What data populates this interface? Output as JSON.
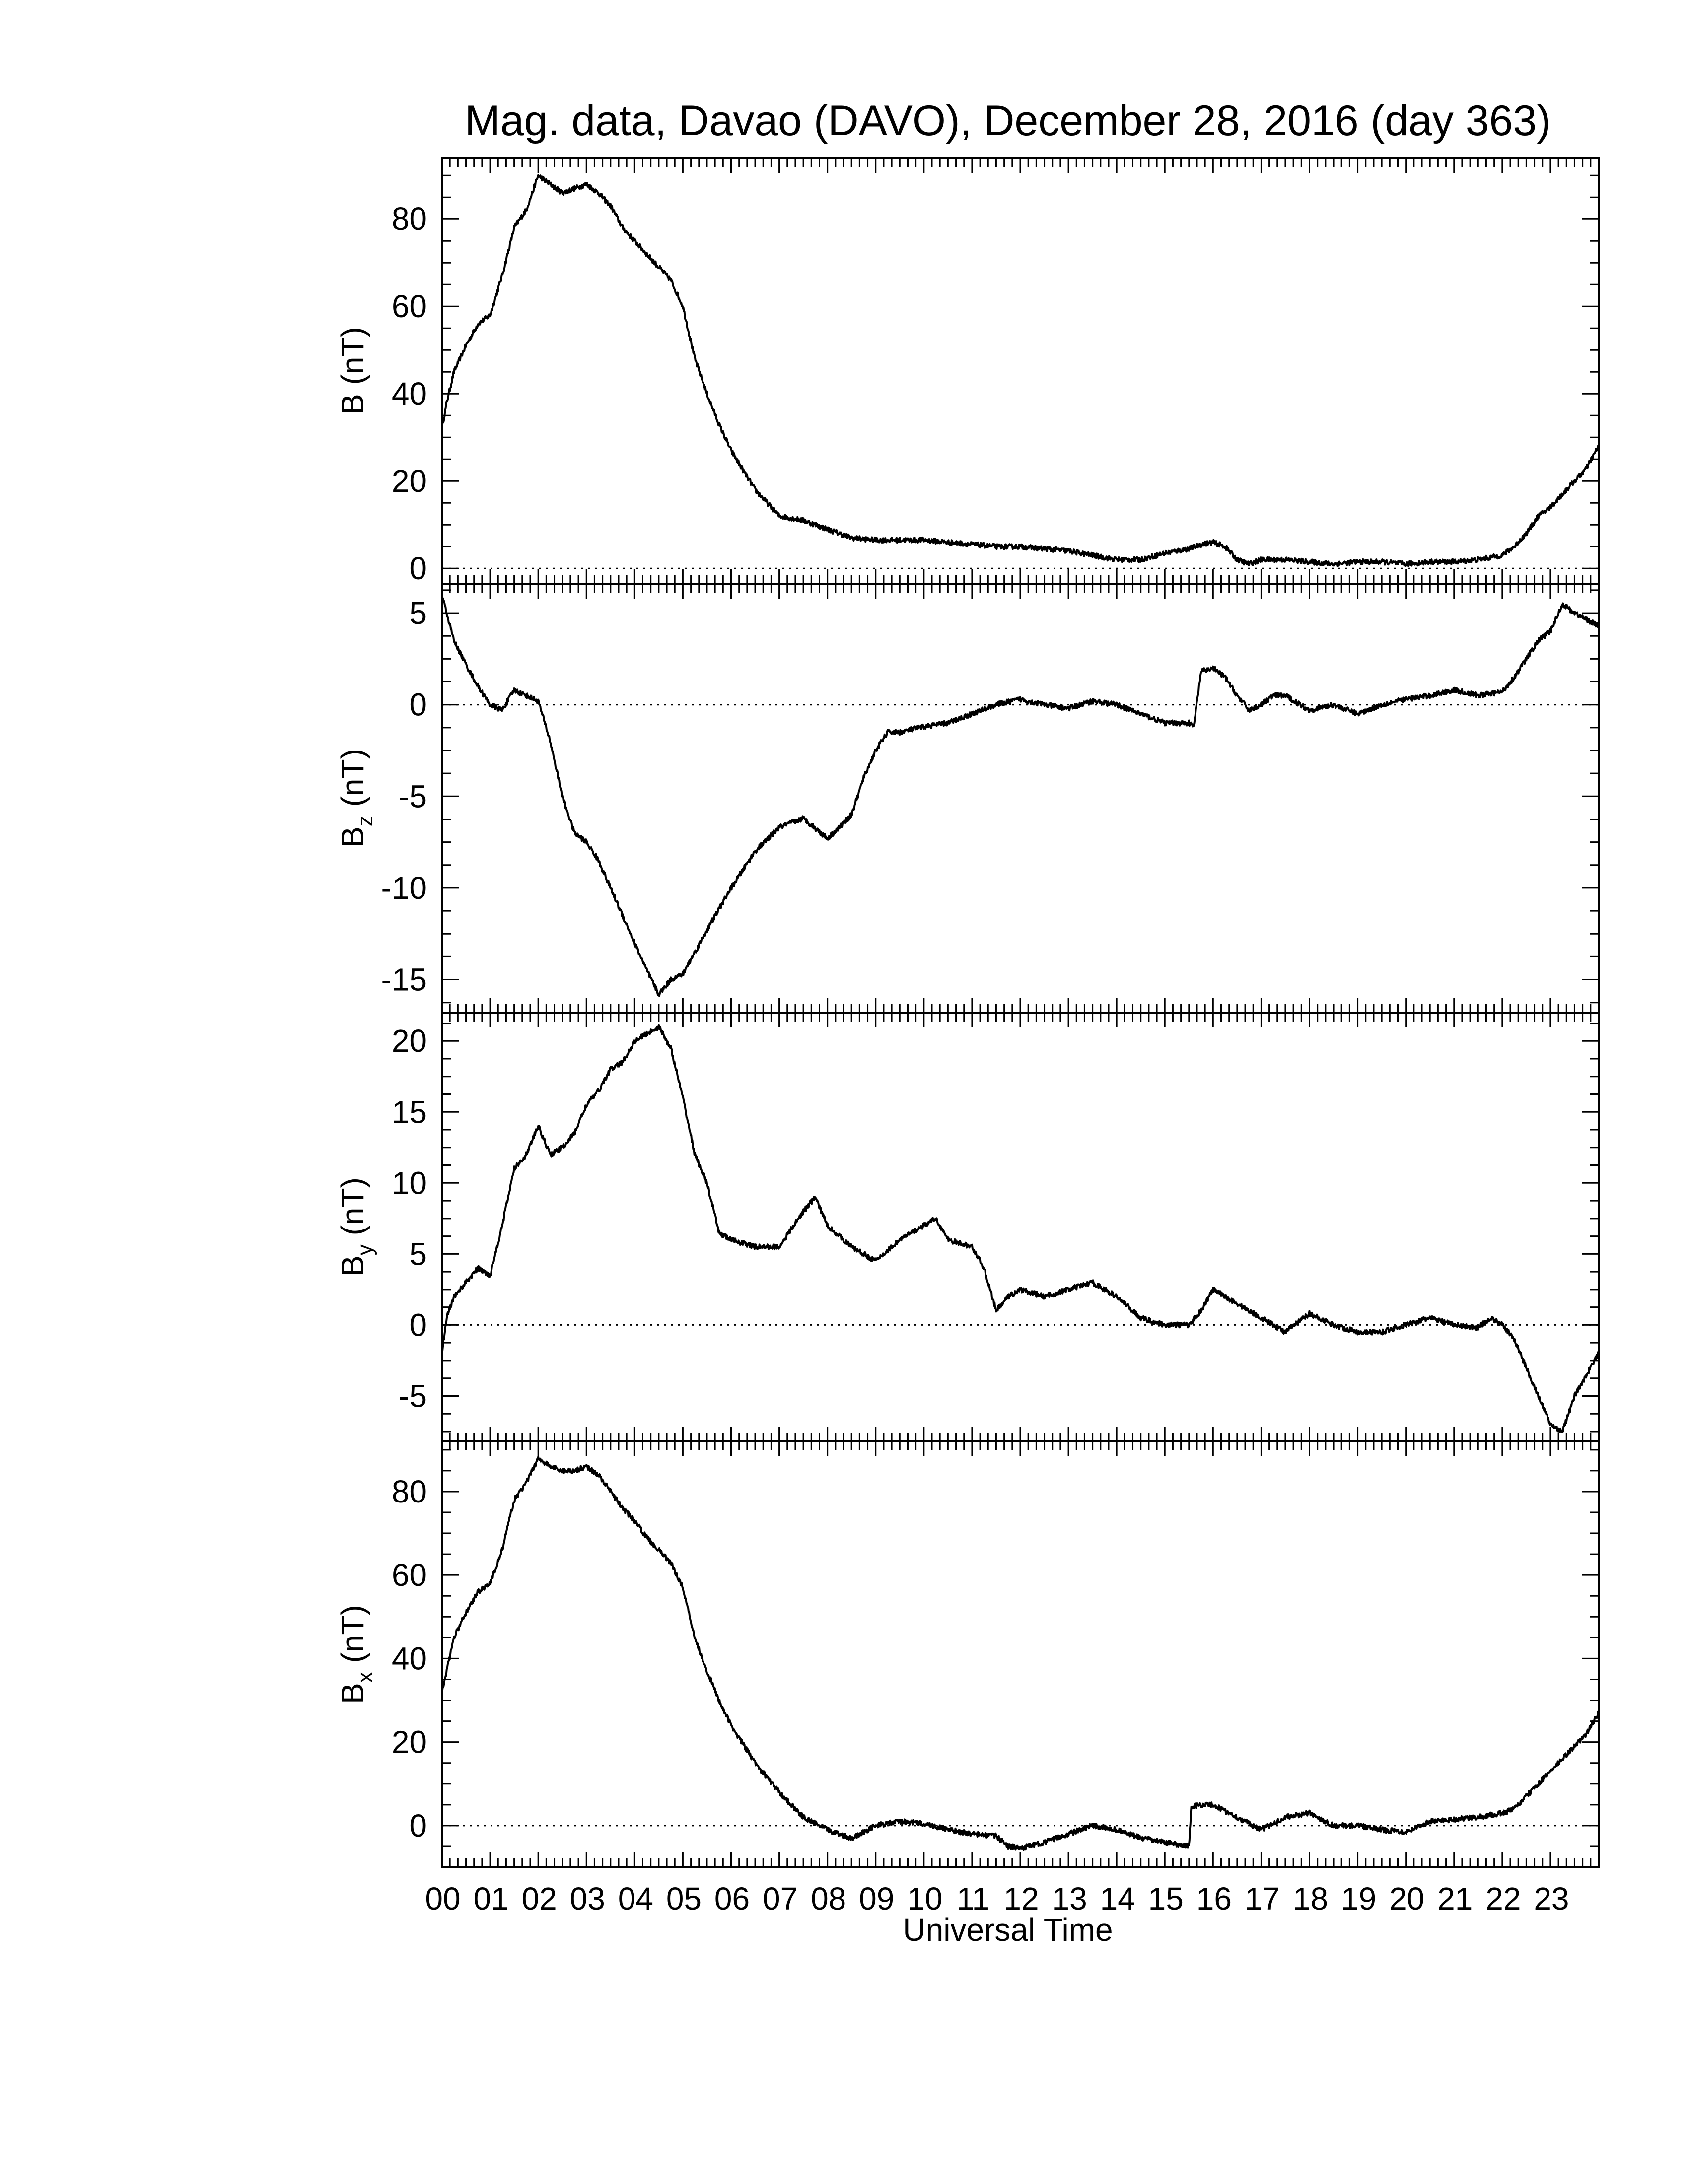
{
  "chart_data": {
    "type": "line",
    "title": "Mag. data, Davao (DAVO), December 28, 2016 (day 363)",
    "xlabel": "Universal Time",
    "x_tick_labels": [
      "00",
      "01",
      "02",
      "03",
      "04",
      "05",
      "06",
      "07",
      "08",
      "09",
      "10",
      "11",
      "12",
      "13",
      "14",
      "15",
      "16",
      "17",
      "18",
      "19",
      "20",
      "21",
      "22",
      "23"
    ],
    "xlim": [
      0,
      24
    ],
    "x_unit": "hours UT",
    "panels": [
      {
        "ylabel_main": "B",
        "ylabel_sub": "",
        "ylabel_unit": "(nT)",
        "ylim": [
          -3.5,
          94
        ],
        "yticks": [
          0,
          20,
          40,
          60,
          80
        ],
        "ytick_labels": [
          "0",
          "20",
          "40",
          "60",
          "80"
        ],
        "zero_line": true,
        "series": [
          {
            "x": [
              0,
              0.1,
              0.25,
              0.5,
              0.75,
              1.0,
              1.25,
              1.5,
              1.75,
              2.0,
              2.25,
              2.5,
              2.75,
              3.0,
              3.25,
              3.5,
              3.75,
              4.0,
              4.25,
              4.5,
              4.75,
              5.0,
              5.25,
              5.5,
              5.75,
              6.0,
              6.5,
              7.0,
              7.5,
              8.0,
              8.5,
              9.0,
              9.5,
              10.0,
              10.5,
              11.0,
              11.5,
              12.0,
              12.5,
              13.0,
              13.5,
              14.0,
              14.5,
              15.0,
              15.5,
              15.75,
              16.0,
              16.25,
              16.5,
              16.75,
              17.0,
              17.5,
              18.0,
              18.5,
              19.0,
              19.5,
              20.0,
              20.5,
              21.0,
              21.5,
              22.0,
              22.25,
              22.5,
              22.75,
              23.0,
              23.25,
              23.5,
              23.75,
              24.0
            ],
            "y": [
              32,
              38,
              45,
              51,
              56,
              58,
              67,
              78,
              82,
              90,
              88,
              86,
              87,
              88,
              86,
              83,
              78,
              75,
              72,
              69,
              66,
              60,
              48,
              40,
              33,
              27,
              18,
              12,
              11,
              9,
              7,
              6.5,
              6.5,
              6.5,
              6,
              5.5,
              5,
              5,
              4.5,
              4,
              3,
              2,
              2,
              3.5,
              4.5,
              5.5,
              6,
              5,
              2,
              1,
              2,
              2,
              1.5,
              1,
              1.5,
              1.5,
              1,
              1.5,
              1.5,
              2,
              3,
              5,
              8,
              12,
              14,
              17,
              20,
              23,
              28
            ]
          }
        ]
      },
      {
        "ylabel_main": "B",
        "ylabel_sub": "z",
        "ylabel_unit": "(nT)",
        "ylim": [
          -16.8,
          6.6
        ],
        "yticks": [
          -15,
          -10,
          -5,
          0,
          5
        ],
        "ytick_labels": [
          "-15",
          "-10",
          "-5",
          "0",
          "5"
        ],
        "zero_line": true,
        "series": [
          {
            "x": [
              0,
              0.25,
              0.5,
              0.75,
              1.0,
              1.25,
              1.5,
              1.75,
              2.0,
              2.25,
              2.5,
              2.75,
              3.0,
              3.25,
              3.5,
              3.75,
              4.0,
              4.25,
              4.5,
              4.75,
              5.0,
              5.25,
              5.5,
              6.0,
              6.5,
              7.0,
              7.5,
              8.0,
              8.25,
              8.5,
              8.75,
              9.0,
              9.25,
              9.5,
              10.0,
              10.5,
              11.0,
              11.5,
              12.0,
              12.5,
              13.0,
              13.5,
              14.0,
              14.5,
              15.0,
              15.5,
              15.6,
              15.75,
              16.0,
              16.25,
              16.5,
              16.75,
              17.0,
              17.25,
              17.5,
              18.0,
              18.5,
              19.0,
              19.5,
              20.0,
              20.5,
              21.0,
              21.5,
              22.0,
              22.25,
              22.5,
              22.75,
              23.0,
              23.25,
              23.5,
              24.0
            ],
            "y": [
              6,
              3.5,
              2.2,
              1,
              0,
              -0.3,
              0.8,
              0.5,
              0.2,
              -2,
              -5,
              -7,
              -7.5,
              -8.5,
              -10,
              -11.5,
              -13,
              -14.5,
              -15.8,
              -15,
              -14.7,
              -13.5,
              -12.3,
              -10,
              -8,
              -6.7,
              -6.2,
              -7.3,
              -6.7,
              -6,
              -4,
              -2.5,
              -1.5,
              -1.5,
              -1.2,
              -1,
              -0.5,
              0,
              0.3,
              0,
              -0.2,
              0.2,
              0,
              -0.5,
              -1,
              -1,
              -1.2,
              1.8,
              2,
              1.5,
              0.5,
              -0.3,
              0,
              0.5,
              0.5,
              -0.3,
              0,
              -0.5,
              0,
              0.3,
              0.5,
              0.8,
              0.5,
              0.7,
              1.5,
              2.5,
              3.5,
              4,
              5.5,
              5,
              4.3
            ]
          }
        ]
      },
      {
        "ylabel_main": "B",
        "ylabel_sub": "y",
        "ylabel_unit": "(nT)",
        "ylim": [
          -8.2,
          22
        ],
        "yticks": [
          -5,
          0,
          5,
          10,
          15,
          20
        ],
        "ytick_labels": [
          "-5",
          "0",
          "5",
          "10",
          "15",
          "20"
        ],
        "zero_line": true,
        "series": [
          {
            "x": [
              0,
              0.1,
              0.25,
              0.5,
              0.75,
              1.0,
              1.25,
              1.5,
              1.75,
              2.0,
              2.25,
              2.5,
              2.75,
              3.0,
              3.25,
              3.5,
              3.75,
              4.0,
              4.25,
              4.5,
              4.75,
              5.0,
              5.25,
              5.5,
              5.75,
              6.0,
              6.5,
              7.0,
              7.5,
              7.75,
              8.0,
              8.5,
              9.0,
              9.5,
              10.0,
              10.25,
              10.5,
              11.0,
              11.25,
              11.5,
              11.75,
              12.0,
              12.5,
              13.0,
              13.5,
              14.0,
              14.5,
              15.0,
              15.5,
              15.75,
              16.0,
              16.5,
              17.0,
              17.5,
              18.0,
              18.5,
              19.0,
              19.5,
              20.0,
              20.5,
              21.0,
              21.5,
              21.75,
              22.0,
              22.25,
              22.5,
              22.75,
              23.0,
              23.25,
              23.5,
              23.75,
              24.0
            ],
            "y": [
              -2,
              0.5,
              2,
              3,
              4,
              3.5,
              7,
              11,
              12,
              14,
              12,
              12.5,
              13.5,
              15.5,
              16.5,
              18,
              18.5,
              20,
              20.5,
              21,
              19.5,
              16,
              12,
              10,
              6.5,
              6,
              5.5,
              5.5,
              8,
              9,
              7,
              5.5,
              4.5,
              6,
              7,
              7.5,
              6,
              5.5,
              4,
              1,
              2,
              2.5,
              2,
              2.5,
              3,
              2,
              0.5,
              0,
              0,
              1,
              2.5,
              1.5,
              0.5,
              -0.5,
              0.8,
              0,
              -0.5,
              -0.5,
              0,
              0.5,
              0,
              -0.2,
              0.5,
              0,
              -1,
              -3,
              -5,
              -7,
              -7.5,
              -5,
              -3.5,
              -2
            ]
          }
        ]
      },
      {
        "ylabel_main": "B",
        "ylabel_sub": "x",
        "ylabel_unit": "(nT)",
        "ylim": [
          -10,
          92
        ],
        "yticks": [
          0,
          20,
          40,
          60,
          80
        ],
        "ytick_labels": [
          "0",
          "20",
          "40",
          "60",
          "80"
        ],
        "zero_line": true,
        "series": [
          {
            "x": [
              0,
              0.1,
              0.25,
              0.5,
              0.75,
              1.0,
              1.25,
              1.5,
              1.75,
              2.0,
              2.25,
              2.5,
              2.75,
              3.0,
              3.25,
              3.5,
              3.75,
              4.0,
              4.25,
              4.5,
              4.75,
              5.0,
              5.25,
              5.5,
              5.75,
              6.0,
              6.5,
              7.0,
              7.5,
              8.0,
              8.5,
              8.75,
              9.0,
              9.5,
              10.0,
              10.5,
              11.0,
              11.5,
              11.75,
              12.0,
              12.5,
              13.0,
              13.5,
              14.0,
              14.5,
              15.0,
              15.5,
              15.55,
              15.75,
              16.0,
              16.5,
              17.0,
              17.5,
              18.0,
              18.5,
              19.0,
              19.5,
              20.0,
              20.5,
              21.0,
              21.5,
              22.0,
              22.25,
              22.5,
              22.75,
              23.0,
              23.25,
              23.5,
              23.75,
              24.0
            ],
            "y": [
              32,
              37,
              45,
              51,
              56,
              58,
              66,
              78,
              82,
              88,
              86,
              85,
              85,
              86,
              84,
              80,
              76,
              73,
              69,
              66,
              63,
              57,
              45,
              37,
              30,
              24,
              15,
              8,
              2,
              -1,
              -3,
              -1.5,
              0,
              1,
              0.5,
              -1,
              -2,
              -2.5,
              -5,
              -5.5,
              -4,
              -2,
              0,
              -1,
              -3,
              -4,
              -5,
              4.5,
              5,
              5,
              2,
              -1,
              2,
              3,
              0,
              0,
              -1,
              -1.5,
              1,
              1.5,
              2,
              3,
              4,
              7,
              10,
              13,
              16,
              19,
              22,
              27
            ]
          }
        ]
      }
    ],
    "grid": false,
    "legend": "none",
    "line_color": "#000000"
  }
}
